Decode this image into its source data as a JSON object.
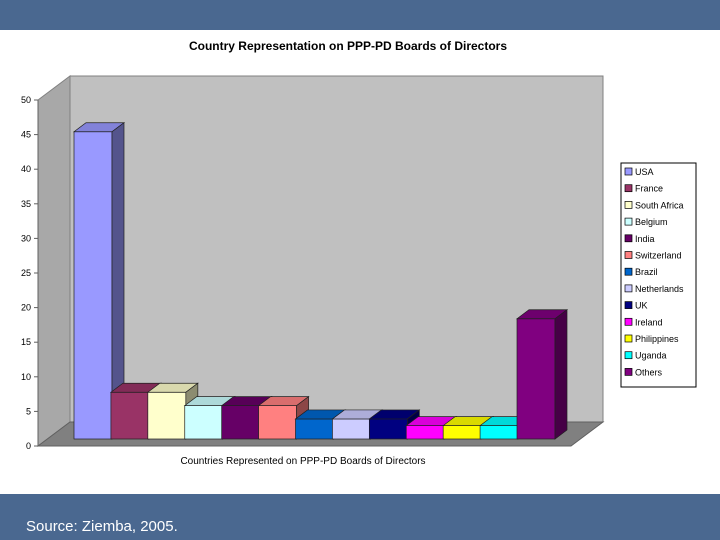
{
  "slide": {
    "source_text": "Source: Ziemba, 2005."
  },
  "chart_data": {
    "type": "bar",
    "title": "Country Representation on PPP-PD Boards of Directors",
    "xlabel": "Countries Represented on PPP-PD Boards of Directors",
    "ylabel": "",
    "ylim": [
      0,
      50
    ],
    "yticks": [
      0,
      5,
      10,
      15,
      20,
      25,
      30,
      35,
      40,
      45,
      50
    ],
    "grid": false,
    "three_d": true,
    "legend_position": "right",
    "categories": [
      "USA",
      "France",
      "South Africa",
      "Belgium",
      "India",
      "Switzerland",
      "Brazil",
      "Netherlands",
      "UK",
      "Ireland",
      "Philippines",
      "Uganda",
      "Others"
    ],
    "values": [
      46,
      7,
      7,
      5,
      5,
      5,
      3,
      3,
      3,
      2,
      2,
      2,
      18
    ],
    "colors": [
      "#9999ff",
      "#993366",
      "#ffffcc",
      "#ccffff",
      "#660066",
      "#ff8080",
      "#0066cc",
      "#ccccff",
      "#000080",
      "#ff00ff",
      "#ffff00",
      "#00ffff",
      "#800080"
    ]
  }
}
